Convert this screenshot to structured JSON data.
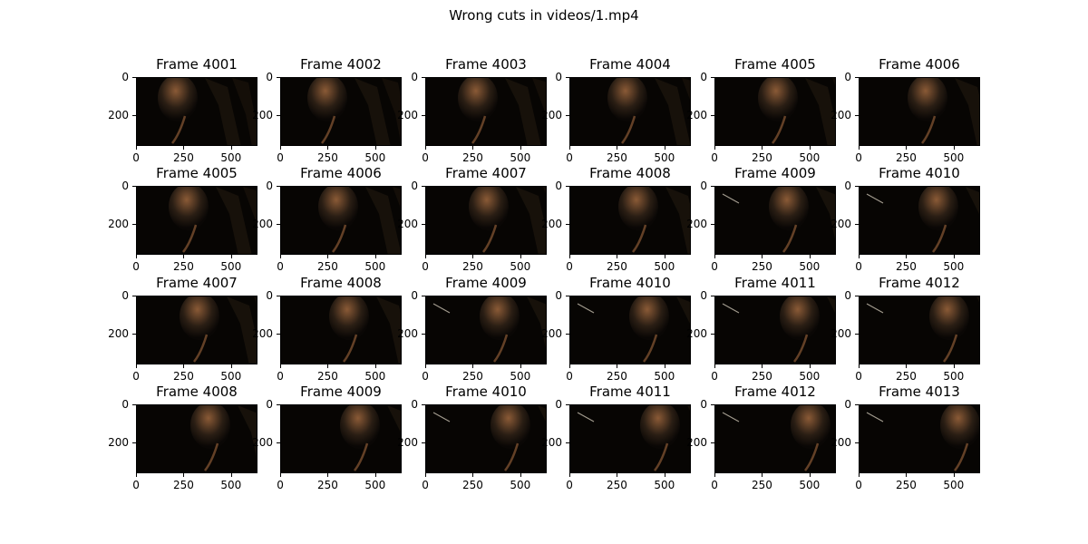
{
  "figure": {
    "title": "Wrong cuts in videos/1.mp4"
  },
  "axes": {
    "xticks": [
      "0",
      "250",
      "500"
    ],
    "yticks": [
      "0",
      "200"
    ]
  },
  "frames": [
    [
      "Frame 4001",
      "Frame 4002",
      "Frame 4003",
      "Frame 4004",
      "Frame 4005",
      "Frame 4006"
    ],
    [
      "Frame 4005",
      "Frame 4006",
      "Frame 4007",
      "Frame 4008",
      "Frame 4009",
      "Frame 4010"
    ],
    [
      "Frame 4007",
      "Frame 4008",
      "Frame 4009",
      "Frame 4010",
      "Frame 4011",
      "Frame 4012"
    ],
    [
      "Frame 4008",
      "Frame 4009",
      "Frame 4010",
      "Frame 4011",
      "Frame 4012",
      "Frame 4013"
    ]
  ],
  "colors": {
    "frame_background": "#070503",
    "highlight": "#8a5a36",
    "shadow": "#2a1e14"
  }
}
